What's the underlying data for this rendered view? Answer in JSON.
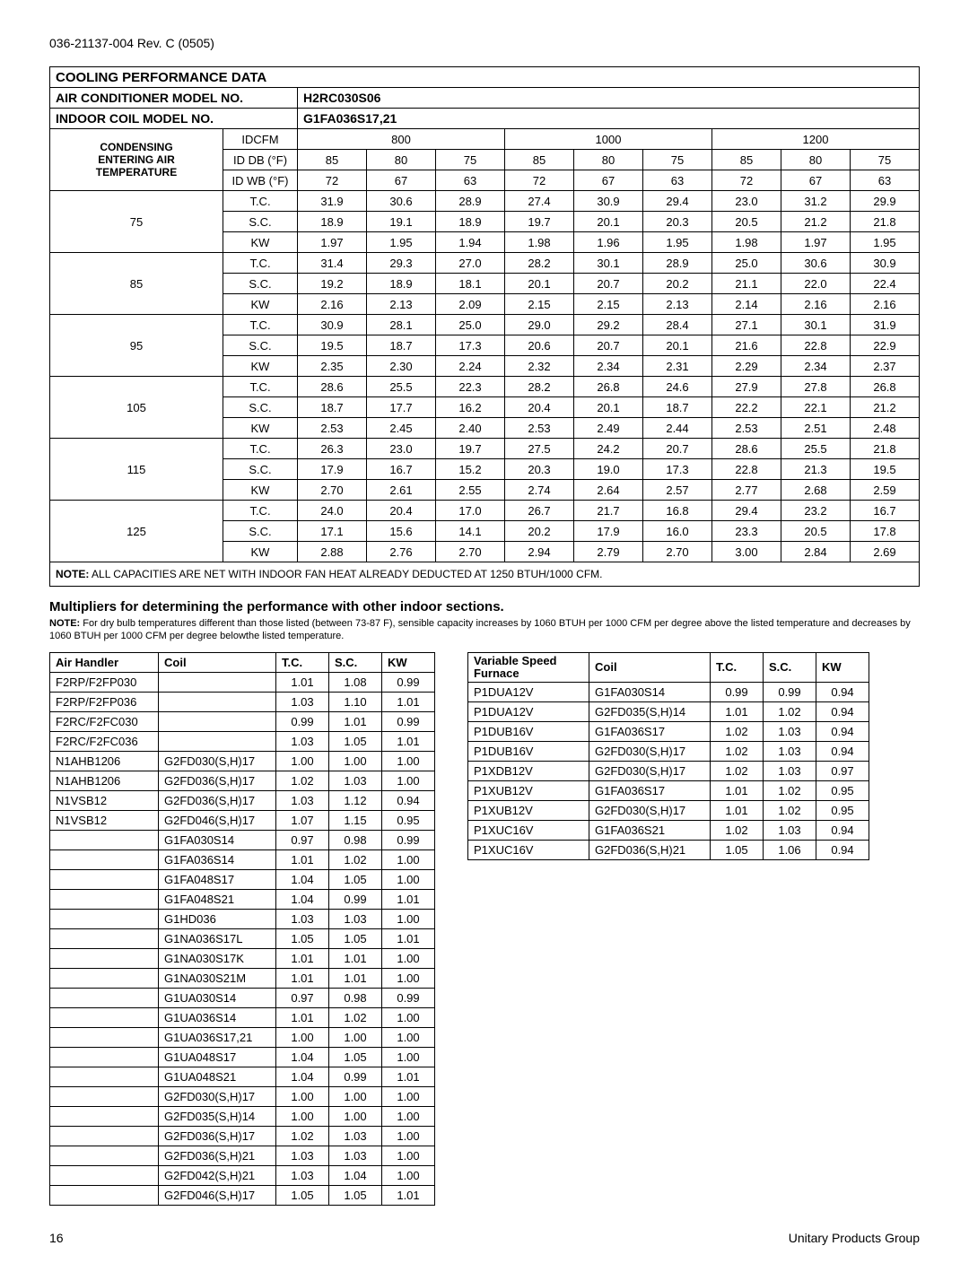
{
  "doc_header": "036-21137-004 Rev. C (0505)",
  "main": {
    "title": "COOLING PERFORMANCE DATA",
    "row_ac_label": "AIR CONDITIONER MODEL NO.",
    "row_ac_value": "H2RC030S06",
    "row_coil_label": "INDOOR COIL MODEL NO.",
    "row_coil_value": "G1FA036S17,21",
    "cond_header_l1": "CONDENSING",
    "cond_header_l2": "ENTERING AIR",
    "cond_header_l3": "TEMPERATURE",
    "idcfm": "IDCFM",
    "cfm": [
      "800",
      "1000",
      "1200"
    ],
    "iddb": "ID DB (°F)",
    "db_vals": [
      "85",
      "80",
      "75",
      "85",
      "80",
      "75",
      "85",
      "80",
      "75"
    ],
    "idwb": "ID WB (°F)",
    "wb_vals": [
      "72",
      "67",
      "63",
      "72",
      "67",
      "63",
      "72",
      "67",
      "63"
    ],
    "temps": [
      "75",
      "85",
      "95",
      "105",
      "115",
      "125"
    ],
    "metrics": [
      "T.C.",
      "S.C.",
      "KW"
    ],
    "data": [
      [
        [
          "31.9",
          "30.6",
          "28.9",
          "27.4",
          "30.9",
          "29.4",
          "23.0",
          "31.2",
          "29.9"
        ],
        [
          "18.9",
          "19.1",
          "18.9",
          "19.7",
          "20.1",
          "20.3",
          "20.5",
          "21.2",
          "21.8"
        ],
        [
          "1.97",
          "1.95",
          "1.94",
          "1.98",
          "1.96",
          "1.95",
          "1.98",
          "1.97",
          "1.95"
        ]
      ],
      [
        [
          "31.4",
          "29.3",
          "27.0",
          "28.2",
          "30.1",
          "28.9",
          "25.0",
          "30.6",
          "30.9"
        ],
        [
          "19.2",
          "18.9",
          "18.1",
          "20.1",
          "20.7",
          "20.2",
          "21.1",
          "22.0",
          "22.4"
        ],
        [
          "2.16",
          "2.13",
          "2.09",
          "2.15",
          "2.15",
          "2.13",
          "2.14",
          "2.16",
          "2.16"
        ]
      ],
      [
        [
          "30.9",
          "28.1",
          "25.0",
          "29.0",
          "29.2",
          "28.4",
          "27.1",
          "30.1",
          "31.9"
        ],
        [
          "19.5",
          "18.7",
          "17.3",
          "20.6",
          "20.7",
          "20.1",
          "21.6",
          "22.8",
          "22.9"
        ],
        [
          "2.35",
          "2.30",
          "2.24",
          "2.32",
          "2.34",
          "2.31",
          "2.29",
          "2.34",
          "2.37"
        ]
      ],
      [
        [
          "28.6",
          "25.5",
          "22.3",
          "28.2",
          "26.8",
          "24.6",
          "27.9",
          "27.8",
          "26.8"
        ],
        [
          "18.7",
          "17.7",
          "16.2",
          "20.4",
          "20.1",
          "18.7",
          "22.2",
          "22.1",
          "21.2"
        ],
        [
          "2.53",
          "2.45",
          "2.40",
          "2.53",
          "2.49",
          "2.44",
          "2.53",
          "2.51",
          "2.48"
        ]
      ],
      [
        [
          "26.3",
          "23.0",
          "19.7",
          "27.5",
          "24.2",
          "20.7",
          "28.6",
          "25.5",
          "21.8"
        ],
        [
          "17.9",
          "16.7",
          "15.2",
          "20.3",
          "19.0",
          "17.3",
          "22.8",
          "21.3",
          "19.5"
        ],
        [
          "2.70",
          "2.61",
          "2.55",
          "2.74",
          "2.64",
          "2.57",
          "2.77",
          "2.68",
          "2.59"
        ]
      ],
      [
        [
          "24.0",
          "20.4",
          "17.0",
          "26.7",
          "21.7",
          "16.8",
          "29.4",
          "23.2",
          "16.7"
        ],
        [
          "17.1",
          "15.6",
          "14.1",
          "20.2",
          "17.9",
          "16.0",
          "23.3",
          "20.5",
          "17.8"
        ],
        [
          "2.88",
          "2.76",
          "2.70",
          "2.94",
          "2.79",
          "2.70",
          "3.00",
          "2.84",
          "2.69"
        ]
      ]
    ],
    "note_label": "NOTE:",
    "note_text": " ALL CAPACITIES ARE NET WITH INDOOR FAN HEAT ALREADY DEDUCTED AT 1250 BTUH/1000 CFM."
  },
  "mult_heading": "Multipliers for determining the performance with other indoor sections.",
  "mult_note_label": "NOTE:",
  "mult_note_text": " For dry bulb temperatures different than those listed (between 73-87 F), sensible capacity increases by 1060 BTUH per 1000 CFM per degree above the listed temperature and decreases by 1060 BTUH per 1000 CFM per degree belowthe listed temperature.",
  "left": {
    "headers": [
      "Air Handler",
      "Coil",
      "T.C.",
      "S.C.",
      "KW"
    ],
    "rows": [
      [
        "F2RP/F2FP030",
        "",
        "1.01",
        "1.08",
        "0.99"
      ],
      [
        "F2RP/F2FP036",
        "",
        "1.03",
        "1.10",
        "1.01"
      ],
      [
        "F2RC/F2FC030",
        "",
        "0.99",
        "1.01",
        "0.99"
      ],
      [
        "F2RC/F2FC036",
        "",
        "1.03",
        "1.05",
        "1.01"
      ],
      [
        "N1AHB1206",
        "G2FD030(S,H)17",
        "1.00",
        "1.00",
        "1.00"
      ],
      [
        "N1AHB1206",
        "G2FD036(S,H)17",
        "1.02",
        "1.03",
        "1.00"
      ],
      [
        "N1VSB12",
        "G2FD036(S,H)17",
        "1.03",
        "1.12",
        "0.94"
      ],
      [
        "N1VSB12",
        "G2FD046(S,H)17",
        "1.07",
        "1.15",
        "0.95"
      ],
      [
        "",
        "G1FA030S14",
        "0.97",
        "0.98",
        "0.99"
      ],
      [
        "",
        "G1FA036S14",
        "1.01",
        "1.02",
        "1.00"
      ],
      [
        "",
        "G1FA048S17",
        "1.04",
        "1.05",
        "1.00"
      ],
      [
        "",
        "G1FA048S21",
        "1.04",
        "0.99",
        "1.01"
      ],
      [
        "",
        "G1HD036",
        "1.03",
        "1.03",
        "1.00"
      ],
      [
        "",
        "G1NA036S17L",
        "1.05",
        "1.05",
        "1.01"
      ],
      [
        "",
        "G1NA030S17K",
        "1.01",
        "1.01",
        "1.00"
      ],
      [
        "",
        "G1NA030S21M",
        "1.01",
        "1.01",
        "1.00"
      ],
      [
        "",
        "G1UA030S14",
        "0.97",
        "0.98",
        "0.99"
      ],
      [
        "",
        "G1UA036S14",
        "1.01",
        "1.02",
        "1.00"
      ],
      [
        "",
        "G1UA036S17,21",
        "1.00",
        "1.00",
        "1.00"
      ],
      [
        "",
        "G1UA048S17",
        "1.04",
        "1.05",
        "1.00"
      ],
      [
        "",
        "G1UA048S21",
        "1.04",
        "0.99",
        "1.01"
      ],
      [
        "",
        "G2FD030(S,H)17",
        "1.00",
        "1.00",
        "1.00"
      ],
      [
        "",
        "G2FD035(S,H)14",
        "1.00",
        "1.00",
        "1.00"
      ],
      [
        "",
        "G2FD036(S,H)17",
        "1.02",
        "1.03",
        "1.00"
      ],
      [
        "",
        "G2FD036(S,H)21",
        "1.03",
        "1.03",
        "1.00"
      ],
      [
        "",
        "G2FD042(S,H)21",
        "1.03",
        "1.04",
        "1.00"
      ],
      [
        "",
        "G2FD046(S,H)17",
        "1.05",
        "1.05",
        "1.01"
      ]
    ]
  },
  "right": {
    "headers": [
      "Variable Speed Furnace",
      "Coil",
      "T.C.",
      "S.C.",
      "KW"
    ],
    "rows": [
      [
        "P1DUA12V",
        "G1FA030S14",
        "0.99",
        "0.99",
        "0.94"
      ],
      [
        "P1DUA12V",
        "G2FD035(S,H)14",
        "1.01",
        "1.02",
        "0.94"
      ],
      [
        "P1DUB16V",
        "G1FA036S17",
        "1.02",
        "1.03",
        "0.94"
      ],
      [
        "P1DUB16V",
        "G2FD030(S,H)17",
        "1.02",
        "1.03",
        "0.94"
      ],
      [
        "P1XDB12V",
        "G2FD030(S,H)17",
        "1.02",
        "1.03",
        "0.97"
      ],
      [
        "P1XUB12V",
        "G1FA036S17",
        "1.01",
        "1.02",
        "0.95"
      ],
      [
        "P1XUB12V",
        "G2FD030(S,H)17",
        "1.01",
        "1.02",
        "0.95"
      ],
      [
        "P1XUC16V",
        "G1FA036S21",
        "1.02",
        "1.03",
        "0.94"
      ],
      [
        "P1XUC16V",
        "G2FD036(S,H)21",
        "1.05",
        "1.06",
        "0.94"
      ]
    ]
  },
  "footer": {
    "page": "16",
    "right": "Unitary Products Group"
  },
  "style": {
    "bg": "#ffffff",
    "text": "#000000",
    "border": "#000000",
    "font": "Arial, Helvetica, sans-serif"
  }
}
